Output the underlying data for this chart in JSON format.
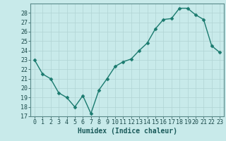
{
  "x": [
    0,
    1,
    2,
    3,
    4,
    5,
    6,
    7,
    8,
    9,
    10,
    11,
    12,
    13,
    14,
    15,
    16,
    17,
    18,
    19,
    20,
    21,
    22,
    23
  ],
  "y": [
    23,
    21.5,
    21.0,
    19.5,
    19.0,
    18.0,
    19.2,
    17.3,
    19.8,
    21.0,
    22.3,
    22.8,
    23.1,
    24.0,
    24.8,
    26.3,
    27.3,
    27.4,
    28.5,
    28.5,
    27.8,
    27.3,
    24.5,
    23.8
  ],
  "xlabel": "Humidex (Indice chaleur)",
  "line_color": "#1a7a6e",
  "marker_color": "#1a7a6e",
  "bg_color": "#c8eaea",
  "grid_color": "#b0d4d4",
  "ylim": [
    17,
    29
  ],
  "xlim": [
    -0.5,
    23.5
  ],
  "yticks": [
    17,
    18,
    19,
    20,
    21,
    22,
    23,
    24,
    25,
    26,
    27,
    28
  ],
  "xticks": [
    0,
    1,
    2,
    3,
    4,
    5,
    6,
    7,
    8,
    9,
    10,
    11,
    12,
    13,
    14,
    15,
    16,
    17,
    18,
    19,
    20,
    21,
    22,
    23
  ],
  "xlabel_fontsize": 7,
  "tick_fontsize": 6,
  "marker_size": 2.5,
  "line_width": 1.0
}
